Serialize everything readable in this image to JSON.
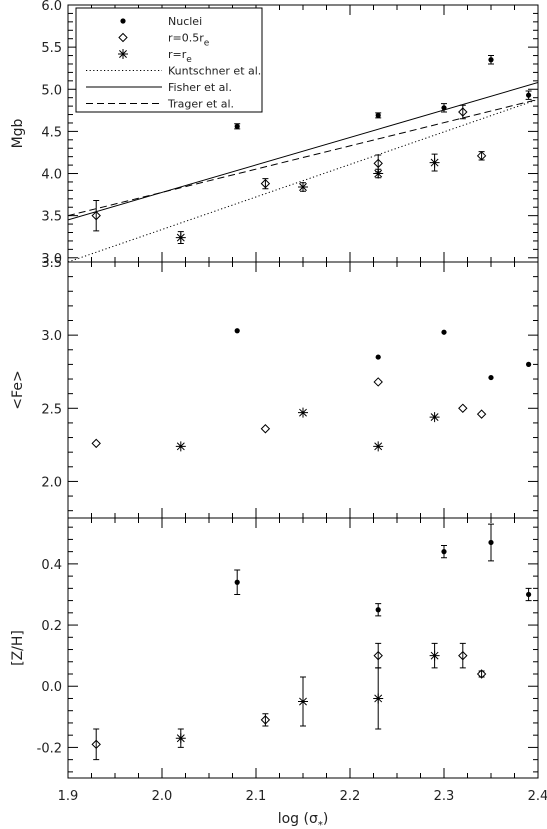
{
  "chart_data": [
    {
      "type": "scatter",
      "xlim": [
        1.9,
        2.4
      ],
      "ylim": [
        2.95,
        6.0
      ],
      "ylabel": "Mgb",
      "xlabel": "",
      "ticks_x": [
        1.9,
        2.0,
        2.1,
        2.2,
        2.3,
        2.4
      ],
      "ticks_y": [
        3.0,
        3.5,
        4.0,
        4.5,
        5.0,
        5.5,
        6.0
      ],
      "tick_labels_y": [
        "3.0",
        "3.5",
        "4.0",
        "4.5",
        "5.0",
        "5.5",
        "6.0"
      ],
      "legend": {
        "placement": "top-left",
        "entries": [
          {
            "label": "Nuclei",
            "marker": "dot"
          },
          {
            "label": "r=0.5r",
            "sub": "e",
            "marker": "diamond"
          },
          {
            "label": "r=r",
            "sub": "e",
            "marker": "asterisk"
          },
          {
            "label": "Kuntschner et al.",
            "line": "dotted"
          },
          {
            "label": "Fisher et al.",
            "line": "solid"
          },
          {
            "label": "Trager et al.",
            "line": "dashed"
          }
        ]
      },
      "series": [
        {
          "name": "Nuclei",
          "marker": "dot",
          "x": [
            2.08,
            2.23,
            2.3,
            2.35,
            2.39
          ],
          "y": [
            4.56,
            4.69,
            4.78,
            5.35,
            4.93
          ],
          "err": [
            0.03,
            0.03,
            0.05,
            0.05,
            0.05
          ]
        },
        {
          "name": "r=0.5re",
          "marker": "diamond",
          "x": [
            1.93,
            2.11,
            2.23,
            2.32,
            2.34
          ],
          "y": [
            3.5,
            3.88,
            4.12,
            4.73,
            4.21
          ],
          "err": [
            0.18,
            0.06,
            0.1,
            0.08,
            0.05
          ]
        },
        {
          "name": "r=re",
          "marker": "asterisk",
          "x": [
            2.02,
            2.15,
            2.23,
            2.29
          ],
          "y": [
            3.24,
            3.84,
            4.0,
            4.13
          ],
          "err": [
            0.07,
            0.05,
            0.05,
            0.1
          ]
        }
      ],
      "lines": [
        {
          "name": "Kuntschner et al.",
          "style": "dotted",
          "x": [
            1.9,
            2.4
          ],
          "y": [
            2.95,
            4.88
          ]
        },
        {
          "name": "Fisher et al.",
          "style": "solid",
          "x": [
            1.9,
            2.4
          ],
          "y": [
            3.45,
            5.08
          ]
        },
        {
          "name": "Trager et al.",
          "style": "dashed",
          "x": [
            1.9,
            2.4
          ],
          "y": [
            3.5,
            4.88
          ]
        }
      ]
    },
    {
      "type": "scatter",
      "xlim": [
        1.9,
        2.4
      ],
      "ylim": [
        1.75,
        3.5
      ],
      "ylabel": "<Fe>",
      "xlabel": "",
      "ticks_x": [
        1.9,
        2.0,
        2.1,
        2.2,
        2.3,
        2.4
      ],
      "ticks_y": [
        2.0,
        2.5,
        3.0,
        3.5
      ],
      "tick_labels_y": [
        "2.0",
        "2.5",
        "3.0",
        "3.5"
      ],
      "series": [
        {
          "name": "Nuclei",
          "marker": "dot",
          "x": [
            2.08,
            2.23,
            2.3,
            2.35,
            2.39
          ],
          "y": [
            3.03,
            2.85,
            3.02,
            2.71,
            2.8
          ]
        },
        {
          "name": "r=0.5re",
          "marker": "diamond",
          "x": [
            1.93,
            2.11,
            2.23,
            2.32,
            2.34
          ],
          "y": [
            2.26,
            2.36,
            2.68,
            2.5,
            2.46
          ]
        },
        {
          "name": "r=re",
          "marker": "asterisk",
          "x": [
            2.02,
            2.15,
            2.23,
            2.29
          ],
          "y": [
            2.24,
            2.47,
            2.24,
            2.44
          ]
        }
      ]
    },
    {
      "type": "scatter",
      "xlim": [
        1.9,
        2.4
      ],
      "ylim": [
        -0.3,
        0.55
      ],
      "ylabel": "[Z/H]",
      "xlabel": "log (σ",
      "xlabel_sub": "*",
      "xlabel_end": ")",
      "ticks_x": [
        1.9,
        2.0,
        2.1,
        2.2,
        2.3,
        2.4
      ],
      "tick_labels_x": [
        "1.9",
        "2.0",
        "2.1",
        "2.2",
        "2.3",
        "2.4"
      ],
      "ticks_y": [
        -0.2,
        0.0,
        0.2,
        0.4
      ],
      "tick_labels_y": [
        "-0.2",
        "0.0",
        "0.2",
        "0.4"
      ],
      "series": [
        {
          "name": "Nuclei",
          "marker": "dot",
          "x": [
            2.08,
            2.23,
            2.3,
            2.35,
            2.39
          ],
          "y": [
            0.34,
            0.25,
            0.44,
            0.47,
            0.3
          ],
          "err": [
            0.04,
            0.02,
            0.02,
            0.06,
            0.02
          ]
        },
        {
          "name": "r=0.5re",
          "marker": "diamond",
          "x": [
            1.93,
            2.11,
            2.23,
            2.32,
            2.34
          ],
          "y": [
            -0.19,
            -0.11,
            0.1,
            0.1,
            0.04
          ],
          "err": [
            0.05,
            0.02,
            0.04,
            0.04,
            0.01
          ]
        },
        {
          "name": "r=re",
          "marker": "asterisk",
          "x": [
            2.02,
            2.15,
            2.23,
            2.29
          ],
          "y": [
            -0.17,
            -0.05,
            -0.04,
            0.1
          ],
          "err": [
            0.03,
            0.08,
            0.1,
            0.04
          ]
        }
      ]
    }
  ]
}
